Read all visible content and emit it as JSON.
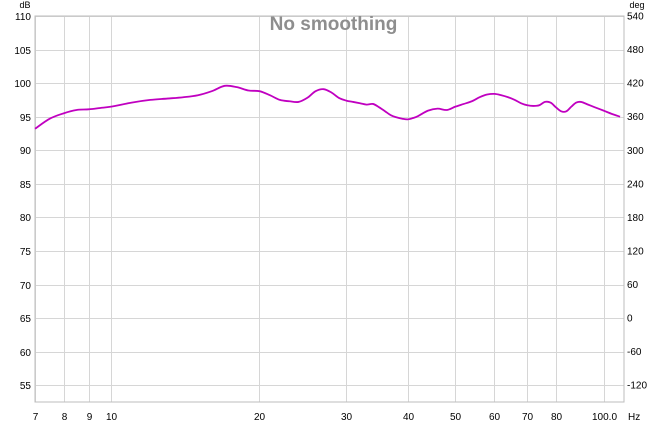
{
  "chart_data": {
    "type": "line",
    "title": "No smoothing",
    "y_unit_left": "dB",
    "y_unit_right": "deg",
    "x_unit": "Hz",
    "x_scale": "log",
    "xlim": [
      7,
      110
    ],
    "ylim": [
      52.5,
      110
    ],
    "y2lim": [
      -150,
      540
    ],
    "grid": true,
    "x_ticks": [
      {
        "value": 7,
        "label": "7"
      },
      {
        "value": 8,
        "label": "8"
      },
      {
        "value": 9,
        "label": "9"
      },
      {
        "value": 10,
        "label": "10"
      },
      {
        "value": 20,
        "label": "20"
      },
      {
        "value": 30,
        "label": "30"
      },
      {
        "value": 40,
        "label": "40"
      },
      {
        "value": 50,
        "label": "50"
      },
      {
        "value": 60,
        "label": "60"
      },
      {
        "value": 70,
        "label": "70"
      },
      {
        "value": 80,
        "label": "80"
      },
      {
        "value": 100,
        "label": "100.0"
      }
    ],
    "y_ticks_left": [
      {
        "value": 110,
        "label": "110"
      },
      {
        "value": 105,
        "label": "105"
      },
      {
        "value": 100,
        "label": "100"
      },
      {
        "value": 95,
        "label": "95"
      },
      {
        "value": 90,
        "label": "90"
      },
      {
        "value": 85,
        "label": "85"
      },
      {
        "value": 80,
        "label": "80"
      },
      {
        "value": 75,
        "label": "75"
      },
      {
        "value": 70,
        "label": "70"
      },
      {
        "value": 65,
        "label": "65"
      },
      {
        "value": 60,
        "label": "60"
      },
      {
        "value": 55,
        "label": "55"
      }
    ],
    "y_ticks_right": [
      {
        "value": 540,
        "label": "540"
      },
      {
        "value": 480,
        "label": "480"
      },
      {
        "value": 420,
        "label": "420"
      },
      {
        "value": 360,
        "label": "360"
      },
      {
        "value": 300,
        "label": "300"
      },
      {
        "value": 240,
        "label": "240"
      },
      {
        "value": 180,
        "label": "180"
      },
      {
        "value": 120,
        "label": "120"
      },
      {
        "value": 60,
        "label": "60"
      },
      {
        "value": 0,
        "label": "0"
      },
      {
        "value": -60,
        "label": "-60"
      },
      {
        "value": -120,
        "label": "-120"
      }
    ],
    "series": [
      {
        "color": "#c000c0",
        "x": [
          7.0,
          7.5,
          8.0,
          8.5,
          9.0,
          9.5,
          10.0,
          11.0,
          12.0,
          13.0,
          14.0,
          15.0,
          16.0,
          17.0,
          18.0,
          19.0,
          20.0,
          21.0,
          22.0,
          23.0,
          24.0,
          25.0,
          26.0,
          27.0,
          28.0,
          29.0,
          30.0,
          31.0,
          32.0,
          33.0,
          34.0,
          35.0,
          36.0,
          37.0,
          38.0,
          39.0,
          40.0,
          41.0,
          42.0,
          44.0,
          46.0,
          48.0,
          50.0,
          52.0,
          54.0,
          56.0,
          58.0,
          60.0,
          62.0,
          64.0,
          66.0,
          68.0,
          70.0,
          72.0,
          74.0,
          76.0,
          78.0,
          80.0,
          82.0,
          84.0,
          86.0,
          88.0,
          90.0,
          93.0,
          96.0,
          100.0,
          104.0,
          108.0
        ],
        "y": [
          93.2,
          94.7,
          95.5,
          96.0,
          96.1,
          96.3,
          96.5,
          97.1,
          97.5,
          97.7,
          97.9,
          98.2,
          98.8,
          99.6,
          99.4,
          98.9,
          98.8,
          98.2,
          97.5,
          97.3,
          97.2,
          97.8,
          98.8,
          99.1,
          98.6,
          97.8,
          97.4,
          97.2,
          97.0,
          96.8,
          96.9,
          96.4,
          95.8,
          95.2,
          94.9,
          94.7,
          94.6,
          94.8,
          95.1,
          95.9,
          96.2,
          96.0,
          96.5,
          96.9,
          97.3,
          97.9,
          98.3,
          98.4,
          98.2,
          97.9,
          97.5,
          97.0,
          96.7,
          96.6,
          96.7,
          97.2,
          97.1,
          96.4,
          95.8,
          95.8,
          96.5,
          97.1,
          97.2,
          96.8,
          96.4,
          95.9,
          95.4,
          95.0
        ]
      }
    ]
  }
}
